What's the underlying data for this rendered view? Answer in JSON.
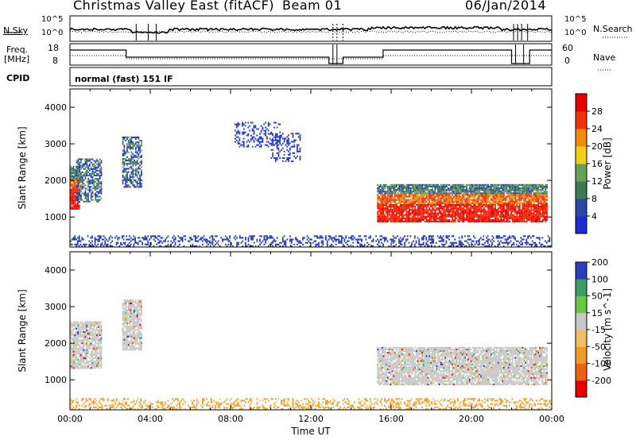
{
  "header": {
    "title": "Christmas Valley East (fitACF)",
    "beam": "Beam 01",
    "date": "06/Jan/2014"
  },
  "status_panels": {
    "nsky_label": "N.Sky",
    "nsearch_label": "N.Search",
    "noise_ticks": [
      "10^5",
      "10^0"
    ],
    "freq_label_1": "Freq.",
    "freq_label_2": "[MHz]",
    "freq_ticks": [
      "18",
      "8"
    ],
    "nave_label": "Nave",
    "nave_ticks": [
      "60",
      "0"
    ],
    "cpid_label": "CPID",
    "cpid_text": "normal (fast) 151 IF"
  },
  "chart_data": [
    {
      "type": "heatmap",
      "name": "power",
      "ylabel": "Slant Range [km]",
      "ylim": [
        180,
        4500
      ],
      "yticks": [
        1000,
        2000,
        3000,
        4000
      ],
      "xlabel": "",
      "xlim": [
        0,
        24
      ],
      "colorbar_label": "Power [dB]",
      "colorbar_ticks": [
        "4",
        "8",
        "12",
        "16",
        "20",
        "24",
        "28"
      ],
      "colors": [
        "#1a2bd8",
        "#2a46a6",
        "#3a7a55",
        "#6aa05a",
        "#f0d018",
        "#f08c0c",
        "#f03008",
        "#e80000"
      ],
      "echo_regions": [
        {
          "t": [
            0.0,
            0.5
          ],
          "r": [
            1200,
            2400
          ],
          "level": "strong"
        },
        {
          "t": [
            0.3,
            1.6
          ],
          "r": [
            1400,
            2600
          ],
          "level": "medium"
        },
        {
          "t": [
            2.6,
            3.6
          ],
          "r": [
            1800,
            3200
          ],
          "level": "medium"
        },
        {
          "t": [
            8.2,
            10.5
          ],
          "r": [
            2900,
            3600
          ],
          "level": "weak"
        },
        {
          "t": [
            10.0,
            11.5
          ],
          "r": [
            2500,
            3300
          ],
          "level": "weak"
        },
        {
          "t": [
            15.3,
            23.8
          ],
          "r": [
            850,
            1900
          ],
          "level": "strong"
        },
        {
          "t": [
            0.0,
            24.0
          ],
          "r": [
            180,
            500
          ],
          "level": "weak"
        }
      ]
    },
    {
      "type": "heatmap",
      "name": "velocity",
      "ylabel": "Slant Range [km]",
      "ylim": [
        180,
        4500
      ],
      "yticks": [
        1000,
        2000,
        3000,
        4000
      ],
      "xlabel": "Time UT",
      "xlim": [
        0,
        24
      ],
      "xticks": [
        "00:00",
        "04:00",
        "08:00",
        "12:00",
        "16:00",
        "20:00",
        "00:00"
      ],
      "colorbar_label": "Velocity [m s^-1]",
      "colorbar_ticks": [
        "-200",
        "-100",
        "-50",
        "-15",
        "15",
        "50",
        "100",
        "200"
      ],
      "colors": [
        "#e80000",
        "#f06010",
        "#f09a28",
        "#f0c060",
        "#c8c8c8",
        "#6ac840",
        "#38a060",
        "#2840c0"
      ],
      "echo_regions": [
        {
          "t": [
            0.0,
            1.6
          ],
          "r": [
            1300,
            2600
          ],
          "level": "ground"
        },
        {
          "t": [
            2.6,
            3.6
          ],
          "r": [
            1800,
            3200
          ],
          "level": "ground"
        },
        {
          "t": [
            15.3,
            23.8
          ],
          "r": [
            850,
            1900
          ],
          "level": "ground"
        },
        {
          "t": [
            0.0,
            24.0
          ],
          "r": [
            180,
            500
          ],
          "level": "orange"
        }
      ]
    }
  ]
}
